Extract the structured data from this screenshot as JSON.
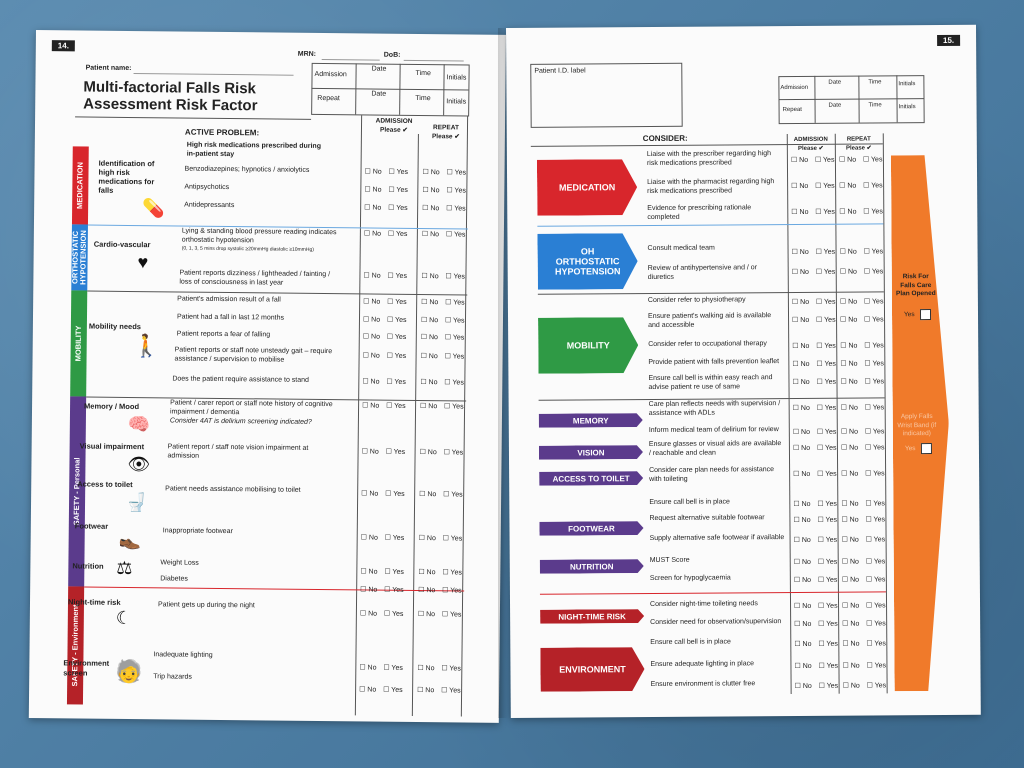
{
  "left_page": {
    "page_number": "14.",
    "patient_name_label": "Patient name:",
    "mrn_label": "MRN:",
    "dob_label": "DoB:",
    "title_line1": "Multi-factorial Falls Risk",
    "title_line2": "Assessment Risk Factor",
    "admission_label": "Admission",
    "repeat_label": "Repeat",
    "date_label": "Date",
    "time_label": "Time",
    "initials_label": "Initials",
    "active_problem_header": "ACTIVE PROBLEM:",
    "admission_col_header": "ADMISSION Please ✔",
    "repeat_col_header": "REPEAT Please ✔",
    "no": "☐ No",
    "yes": "☐ Yes",
    "bands": {
      "medication": "MEDICATION",
      "orthostatic": "ORTHOSTATIC HYPOTENSION",
      "mobility": "MOBILITY",
      "safety_personal": "SAFETY - Personal",
      "safety_environment": "SAFETY - Environment"
    },
    "factors": {
      "medication": "Identification of high risk medications for falls",
      "cardio": "Cardio-vascular",
      "mobility": "Mobility needs",
      "memory": "Memory / Mood",
      "vision": "Visual impairment",
      "toilet": "Access to toilet",
      "footwear": "Footwear",
      "nutrition": "Nutrition",
      "night": "Night-time risk",
      "environment": "Environment screen"
    },
    "problems": {
      "med_header": "High risk medications prescribed during in-patient stay",
      "med1": "Benzodiazepines; hypnotics / anxiolytics",
      "med2": "Antipsychotics",
      "med3": "Antidepressants",
      "oh1": "Lying & standing blood pressure reading indicates orthostatic hypotension",
      "oh1_sub": "(0, 1, 3, 5 mins drop systolic ≥20mmHg diastolic ≥10mmHg)",
      "oh2": "Patient reports dizziness / lightheaded / fainting / loss of consciousness in last year",
      "mob1": "Patient's admission result of a fall",
      "mob2": "Patient had a fall in last 12 months",
      "mob3": "Patient reports a fear of falling",
      "mob4": "Patient reports or staff note unsteady gait – require assistance / supervision to mobilise",
      "mob5": "Does the patient require assistance to stand",
      "mem1": "Patient / carer report or staff note history of cognitive impairment / dementia",
      "mem1_sub": "Consider 4AT is delirium screening indicated?",
      "vis1": "Patient report / staff note vision impairment at admission",
      "toil1": "Patient needs assistance mobilising to toilet",
      "foot1": "Inappropriate footwear",
      "nut1": "Weight Loss",
      "nut2": "Diabetes",
      "night1": "Patient gets up during the night",
      "env1": "Inadequate lighting",
      "env2": "Trip hazards"
    }
  },
  "right_page": {
    "page_number": "15.",
    "patient_id_label": "Patient I.D. label",
    "admission_label": "Admission",
    "repeat_label": "Repeat",
    "date_label": "Date",
    "time_label": "Time",
    "initials_label": "Initials",
    "consider_header": "CONSIDER:",
    "admission_col_header": "ADMISSION Please ✔",
    "repeat_col_header": "REPEAT Please ✔",
    "arrows": {
      "medication": "MEDICATION",
      "oh": "OH ORTHOSTATIC HYPOTENSION",
      "mobility": "MOBILITY",
      "memory": "MEMORY",
      "vision": "VISION",
      "toilet": "ACCESS TO TOILET",
      "footwear": "FOOTWEAR",
      "nutrition": "NUTRITION",
      "night": "NIGHT-TIME RISK",
      "environment": "ENVIRONMENT"
    },
    "actions": {
      "m1": "Liaise with the prescriber regarding high risk medications prescribed",
      "m2": "Liaise with the pharmacist regarding high risk medications prescribed",
      "m3": "Evidence for prescribing rationale completed",
      "o1": "Consult medical team",
      "o2": "Review of antihypertensive and / or diuretics",
      "b1": "Consider refer to physiotherapy",
      "b2": "Ensure patient's walking aid is available and accessible",
      "b3": "Consider refer to occupational therapy",
      "b4": "Provide patient with falls prevention leaflet",
      "b5": "Ensure call bell is within easy reach and advise patient re use of same",
      "me1": "Care plan reflects needs with supervision / assistance with ADLs",
      "me2": "Inform medical team of delirium for review",
      "v1": "Ensure glasses or visual aids are available / reachable and clean",
      "t1": "Consider care plan needs for assistance with toileting",
      "t2": "Ensure call bell is in place",
      "f1": "Request alternative suitable footwear",
      "f2": "Supply alternative safe footwear if available",
      "n1": "MUST Score",
      "n2": "Screen for hypoglycaemia",
      "nt1": "Consider night-time toileting needs",
      "nt2": "Consider need for observation/supervision",
      "nt3": "Ensure call bell is in place",
      "e1": "Ensure adequate lighting in place",
      "e2": "Ensure environment is clutter free"
    },
    "side_banner": {
      "text1": "Risk For Falls Care Plan Opened",
      "yes1": "Yes",
      "text2": "Apply Falls Wrist Band (if indicated)",
      "yes2": "Yes"
    }
  },
  "colors": {
    "medication": "#d8262c",
    "orthostatic": "#2a7fd4",
    "mobility": "#2f9a45",
    "safety_personal": "#5b3b8c",
    "safety_environment": "#b52228",
    "side_banner": "#f07a2a"
  }
}
